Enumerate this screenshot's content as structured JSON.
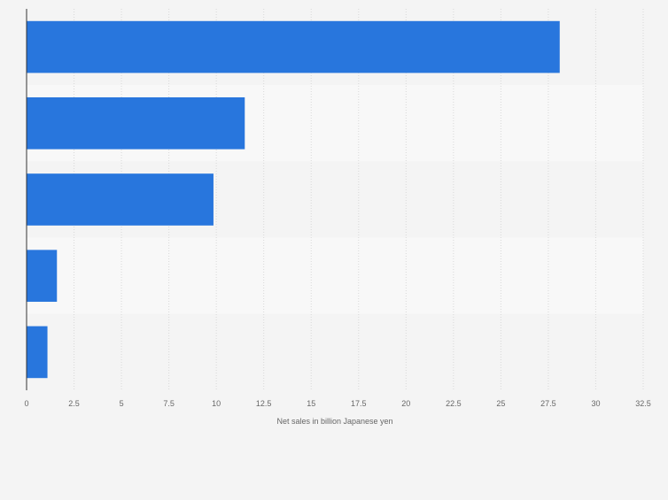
{
  "chart_data": {
    "type": "bar",
    "orientation": "horizontal",
    "categories": [
      "",
      "",
      "",
      "",
      ""
    ],
    "values": [
      28.1,
      11.5,
      9.85,
      1.6,
      1.1
    ],
    "xlabel": "Net sales in billion Japanese yen",
    "ylabel": "",
    "xlim": [
      0,
      32.5
    ],
    "xticks": [
      "0",
      "2.5",
      "5",
      "7.5",
      "10",
      "12.5",
      "15",
      "17.5",
      "20",
      "22.5",
      "25",
      "27.5",
      "30",
      "32.5"
    ],
    "grid": "vertical",
    "bar_color": "#2876dd",
    "band_colors": [
      "#f4f4f4",
      "#f8f8f8"
    ]
  }
}
